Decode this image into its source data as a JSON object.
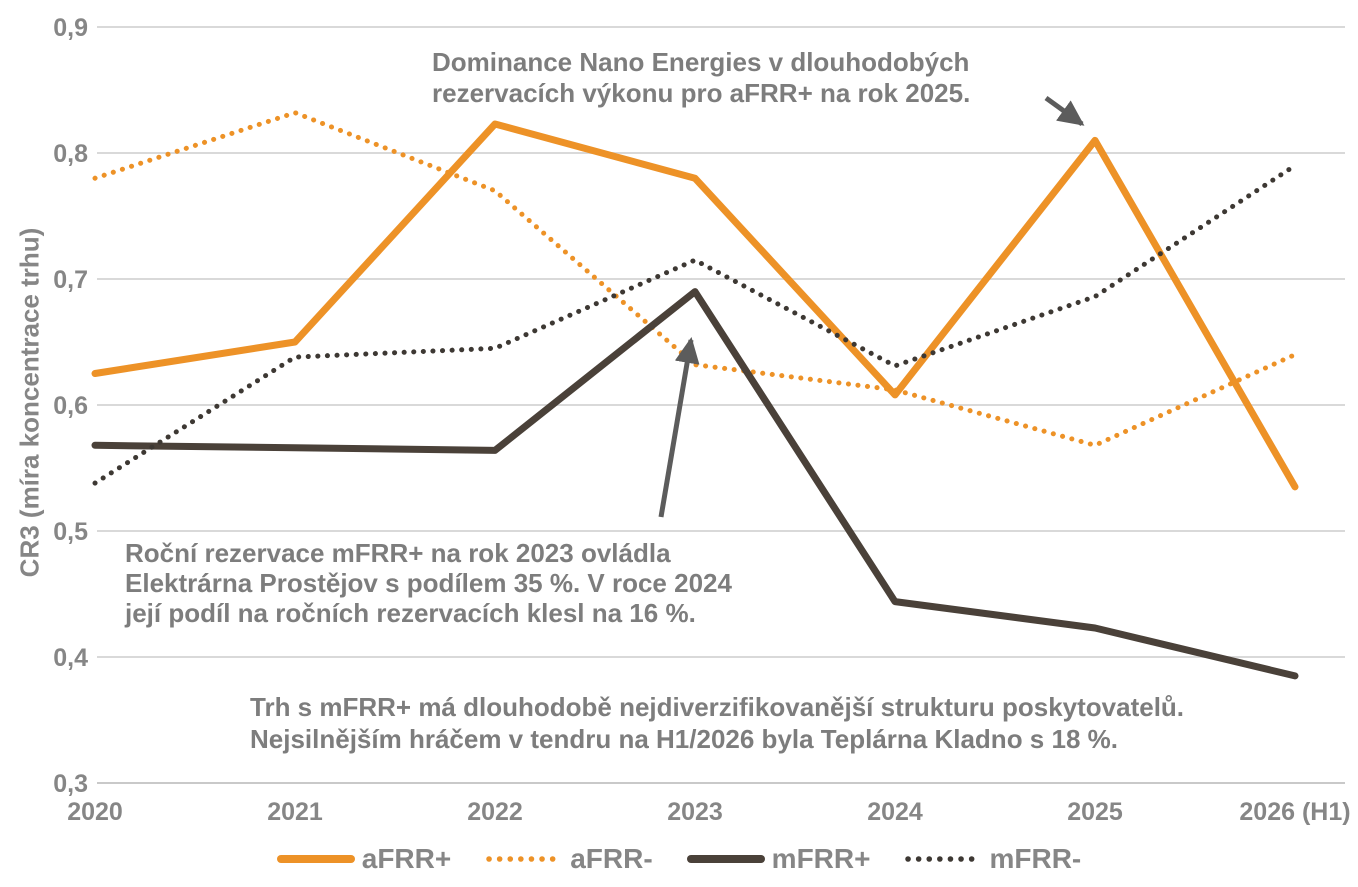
{
  "colors": {
    "afrr_plus": "#ED9227",
    "afrr_minus": "#ED9227",
    "mfrr_plus": "#4A4139",
    "mfrr_minus": "#3D3833",
    "grid": "#D9D9D9",
    "bottom_axis": "#C9C9C9",
    "axis_text": "#868686",
    "annotation_text": "#7D7D7D",
    "arrow": "#5C5C5C",
    "background": "#FFFFFF"
  },
  "chart_data": {
    "type": "line",
    "title": "",
    "xlabel": "",
    "ylabel": "CR3 (míra koncentrace trhu)",
    "categories": [
      "2020",
      "2021",
      "2022",
      "2023",
      "2024",
      "2025",
      "2026 (H1)"
    ],
    "ylim": [
      0.3,
      0.9
    ],
    "y_tick_step": 0.1,
    "y_tick_labels": [
      "0,9",
      "0,8",
      "0,7",
      "0,6",
      "0,5",
      "0,4",
      "0,3"
    ],
    "y_tick_values": [
      0.9,
      0.8,
      0.7,
      0.6,
      0.5,
      0.4,
      0.3
    ],
    "grid": true,
    "legend_position": "bottom",
    "series": [
      {
        "name": "aFRR+",
        "key": "afrr_plus",
        "style": "solid",
        "values": [
          0.625,
          0.65,
          0.823,
          0.78,
          0.608,
          0.81,
          0.535
        ]
      },
      {
        "name": "aFRR-",
        "key": "afrr_minus",
        "style": "dotted",
        "values": [
          0.78,
          0.832,
          0.77,
          0.632,
          0.612,
          0.568,
          0.64
        ]
      },
      {
        "name": "mFRR+",
        "key": "mfrr_plus",
        "style": "solid",
        "values": [
          0.568,
          0.566,
          0.564,
          0.69,
          0.444,
          0.423,
          0.385
        ]
      },
      {
        "name": "mFRR-",
        "key": "mfrr_minus",
        "style": "dotted",
        "values": [
          0.538,
          0.638,
          0.645,
          0.715,
          0.631,
          0.686,
          0.79
        ]
      }
    ]
  },
  "annotations": {
    "nano": {
      "lines": [
        "Dominance Nano Energies v dlouhodobých",
        "rezervacích výkonu pro aFRR+ na rok 2025."
      ],
      "arrow_target": "aFRR+ 2025 peak"
    },
    "prostejov": {
      "lines": [
        "Roční rezervace mFRR+ na rok 2023 ovládla",
        "Elektrárna Prostějov s podílem 35 %. V roce 2024",
        "její podíl na ročních rezervacích klesl na 16 %."
      ],
      "arrow_target": "mFRR+ 2023 peak"
    },
    "kladno": {
      "lines": [
        "Trh s mFRR+ má dlouhodobě nejdiverzifikovanější strukturu poskytovatelů.",
        "Nejsilnějším hráčem v tendru na H1/2026 byla Teplárna Kladno s 18 %."
      ]
    }
  }
}
